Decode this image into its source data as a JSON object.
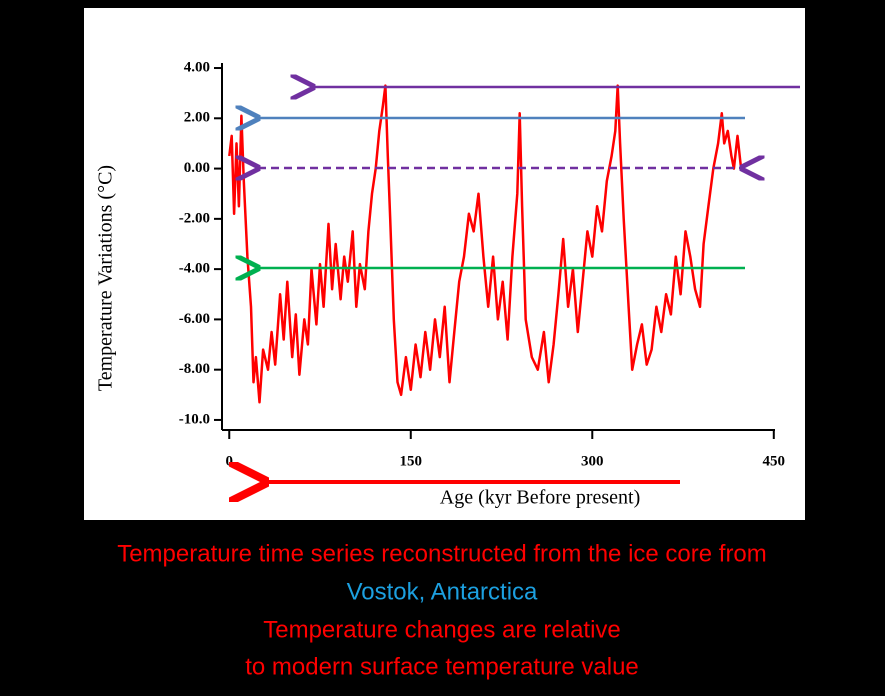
{
  "chart_data": {
    "type": "line",
    "xlabel": "Age (kyr Before present)",
    "ylabel": "Temperature Variations (°C)",
    "color": "#ff0000",
    "x": [
      0,
      2,
      4,
      6,
      8,
      10,
      12,
      15,
      18,
      20,
      22,
      25,
      28,
      32,
      35,
      38,
      42,
      45,
      48,
      52,
      55,
      58,
      62,
      65,
      68,
      72,
      75,
      78,
      82,
      85,
      88,
      92,
      95,
      98,
      102,
      105,
      108,
      112,
      115,
      118,
      121,
      124,
      127,
      129,
      131,
      133,
      136,
      139,
      142,
      146,
      150,
      154,
      158,
      162,
      166,
      170,
      174,
      178,
      182,
      186,
      190,
      194,
      198,
      202,
      206,
      210,
      214,
      218,
      222,
      226,
      230,
      234,
      238,
      240,
      242,
      245,
      250,
      255,
      260,
      264,
      268,
      272,
      276,
      280,
      284,
      288,
      292,
      296,
      300,
      304,
      308,
      312,
      316,
      319,
      321,
      323,
      326,
      330,
      333,
      337,
      341,
      345,
      349,
      353,
      357,
      361,
      365,
      369,
      373,
      377,
      381,
      385,
      389,
      392,
      396,
      400,
      404,
      407,
      409,
      412,
      415,
      417,
      420,
      423
    ],
    "values": [
      0.5,
      1.3,
      -1.8,
      1.0,
      -1.5,
      2.1,
      -0.5,
      -3.5,
      -5.5,
      -8.5,
      -7.5,
      -9.3,
      -7.2,
      -8.0,
      -6.5,
      -7.8,
      -5.0,
      -6.8,
      -4.5,
      -7.5,
      -5.8,
      -8.2,
      -6.0,
      -7.0,
      -4.0,
      -6.2,
      -3.8,
      -5.5,
      -2.2,
      -4.8,
      -3.0,
      -5.2,
      -3.5,
      -4.5,
      -2.5,
      -5.5,
      -3.8,
      -4.8,
      -2.5,
      -1.0,
      0.0,
      1.5,
      2.5,
      3.3,
      0.5,
      -2.0,
      -6.0,
      -8.5,
      -9.0,
      -7.5,
      -8.8,
      -7.0,
      -8.3,
      -6.5,
      -8.0,
      -6.0,
      -7.5,
      -5.5,
      -8.5,
      -6.5,
      -4.5,
      -3.5,
      -1.8,
      -2.5,
      -1.0,
      -3.5,
      -5.5,
      -3.5,
      -6.0,
      -4.5,
      -6.8,
      -3.5,
      -1.0,
      2.2,
      -1.5,
      -6.0,
      -7.5,
      -8.0,
      -6.5,
      -8.5,
      -7.0,
      -5.0,
      -2.8,
      -5.5,
      -4.0,
      -6.5,
      -4.5,
      -2.5,
      -3.5,
      -1.5,
      -2.5,
      -0.5,
      0.5,
      1.5,
      3.3,
      1.0,
      -2.0,
      -5.5,
      -8.0,
      -7.0,
      -6.2,
      -7.8,
      -7.2,
      -5.5,
      -6.5,
      -5.0,
      -5.8,
      -3.5,
      -5.0,
      -2.5,
      -3.5,
      -4.8,
      -5.5,
      -3.0,
      -1.5,
      0.0,
      1.0,
      2.2,
      1.0,
      1.5,
      0.5,
      0.0,
      1.3,
      0.0
    ],
    "xlim": [
      -6,
      451
    ],
    "ylim": [
      -10.4,
      4.2
    ],
    "xticks": [
      0,
      150,
      300,
      450
    ],
    "yticks": [
      {
        "value": 4,
        "label": "4.00"
      },
      {
        "value": 2,
        "label": "2.00"
      },
      {
        "value": 0,
        "label": "0.00"
      },
      {
        "value": -2,
        "label": "-2.00"
      },
      {
        "value": -4,
        "label": "-4.00"
      },
      {
        "value": -6,
        "label": "-6.00"
      },
      {
        "value": -8,
        "label": "-8.00"
      },
      {
        "value": -10,
        "label": "-10.0"
      }
    ],
    "captions": [
      "Temperature time series reconstructed from the ice core from",
      "Vostok, Antarctica",
      "Temperature changes are relative",
      "to modern surface temperature value"
    ]
  }
}
